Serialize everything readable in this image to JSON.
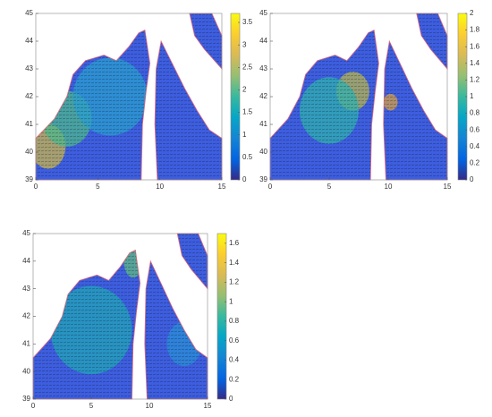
{
  "chart_data": [
    {
      "type": "heatmap",
      "xlim": [
        0,
        15
      ],
      "ylim": [
        39,
        45
      ],
      "xticks": [
        0,
        5,
        10,
        15
      ],
      "yticks": [
        39,
        40,
        41,
        42,
        43,
        44,
        45
      ],
      "clim": [
        0,
        3.7
      ],
      "cticks": [
        0,
        0.5,
        1,
        1.5,
        2,
        2.5,
        3,
        3.5
      ],
      "colormap": "parula"
    },
    {
      "type": "heatmap",
      "xlim": [
        0,
        15
      ],
      "ylim": [
        39,
        45
      ],
      "xticks": [
        0,
        5,
        10,
        15
      ],
      "yticks": [
        39,
        40,
        41,
        42,
        43,
        44,
        45
      ],
      "clim": [
        0,
        2
      ],
      "cticks": [
        0,
        0.2,
        0.4,
        0.6,
        0.8,
        1,
        1.2,
        1.4,
        1.6,
        1.8,
        2
      ],
      "colormap": "parula"
    },
    {
      "type": "heatmap",
      "xlim": [
        0,
        15
      ],
      "ylim": [
        39,
        45
      ],
      "xticks": [
        0,
        5,
        10,
        15
      ],
      "yticks": [
        39,
        40,
        41,
        42,
        43,
        44,
        45
      ],
      "clim": [
        0,
        1.7
      ],
      "cticks": [
        0,
        0.2,
        0.4,
        0.6,
        0.8,
        1,
        1.2,
        1.4,
        1.6
      ],
      "colormap": "parula"
    }
  ]
}
